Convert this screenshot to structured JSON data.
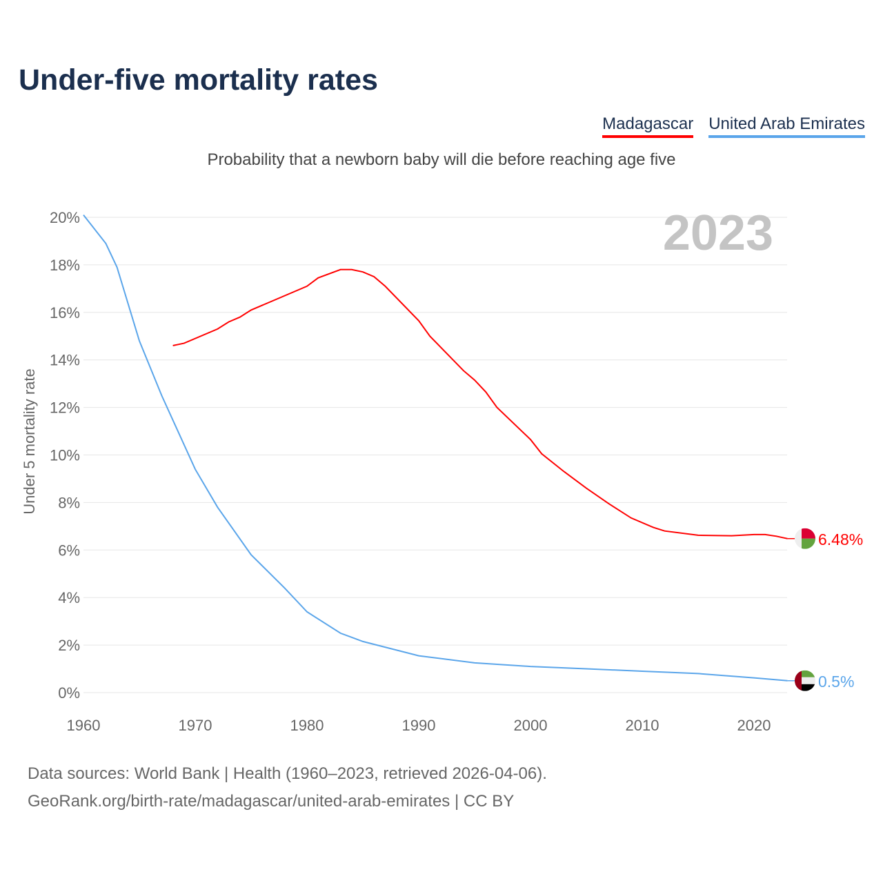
{
  "title": "Under-five mortality rates",
  "subtitle": "Probability that a newborn baby will die before reaching age five",
  "footer": {
    "line1": "Data sources: World Bank | Health (1960–2023, retrieved 2026-04-06).",
    "line2": "GeoRank.org/birth-rate/madagascar/united-arab-emirates | CC BY"
  },
  "chart_data": {
    "type": "line",
    "title": "Under-five mortality rates",
    "ylabel": "Under 5 mortality rate",
    "xlabel": "",
    "year_label": "2023",
    "xlim": [
      1960,
      2023
    ],
    "ylim": [
      0,
      20
    ],
    "xticks": [
      "1960",
      "1970",
      "1980",
      "1990",
      "2000",
      "2010",
      "2020"
    ],
    "yticks": [
      "0%",
      "2%",
      "4%",
      "6%",
      "8%",
      "10%",
      "12%",
      "14%",
      "16%",
      "18%",
      "20%"
    ],
    "grid": true,
    "legend_position": "top-right",
    "series": [
      {
        "name": "Madagascar",
        "color": "#ff0000",
        "end_label": "6.48%",
        "flag": "madagascar-flag",
        "points": [
          [
            1968,
            14.6
          ],
          [
            1969,
            14.7
          ],
          [
            1972,
            15.3
          ],
          [
            1973,
            15.6
          ],
          [
            1974,
            15.8
          ],
          [
            1975,
            16.1
          ],
          [
            1980,
            17.1
          ],
          [
            1981,
            17.45
          ],
          [
            1983,
            17.8
          ],
          [
            1984,
            17.8
          ],
          [
            1985,
            17.7
          ],
          [
            1986,
            17.5
          ],
          [
            1987,
            17.1
          ],
          [
            1990,
            15.65
          ],
          [
            1991,
            15.0
          ],
          [
            1994,
            13.55
          ],
          [
            1995,
            13.15
          ],
          [
            1996,
            12.65
          ],
          [
            1997,
            12.0
          ],
          [
            2000,
            10.65
          ],
          [
            2001,
            10.05
          ],
          [
            2003,
            9.3
          ],
          [
            2005,
            8.6
          ],
          [
            2007,
            7.95
          ],
          [
            2009,
            7.35
          ],
          [
            2011,
            6.95
          ],
          [
            2012,
            6.8
          ],
          [
            2015,
            6.62
          ],
          [
            2018,
            6.6
          ],
          [
            2020,
            6.65
          ],
          [
            2021,
            6.65
          ],
          [
            2022,
            6.58
          ],
          [
            2023,
            6.48
          ]
        ]
      },
      {
        "name": "United Arab Emirates",
        "color": "#5aa5ea",
        "end_label": "0.5%",
        "flag": "uae-flag",
        "points": [
          [
            1960,
            20.1
          ],
          [
            1962,
            18.9
          ],
          [
            1963,
            17.9
          ],
          [
            1965,
            14.8
          ],
          [
            1967,
            12.5
          ],
          [
            1970,
            9.4
          ],
          [
            1972,
            7.8
          ],
          [
            1975,
            5.8
          ],
          [
            1978,
            4.4
          ],
          [
            1980,
            3.4
          ],
          [
            1983,
            2.5
          ],
          [
            1985,
            2.15
          ],
          [
            1990,
            1.55
          ],
          [
            1995,
            1.25
          ],
          [
            2000,
            1.1
          ],
          [
            2005,
            1.0
          ],
          [
            2010,
            0.9
          ],
          [
            2015,
            0.8
          ],
          [
            2020,
            0.62
          ],
          [
            2023,
            0.5
          ]
        ]
      }
    ]
  }
}
